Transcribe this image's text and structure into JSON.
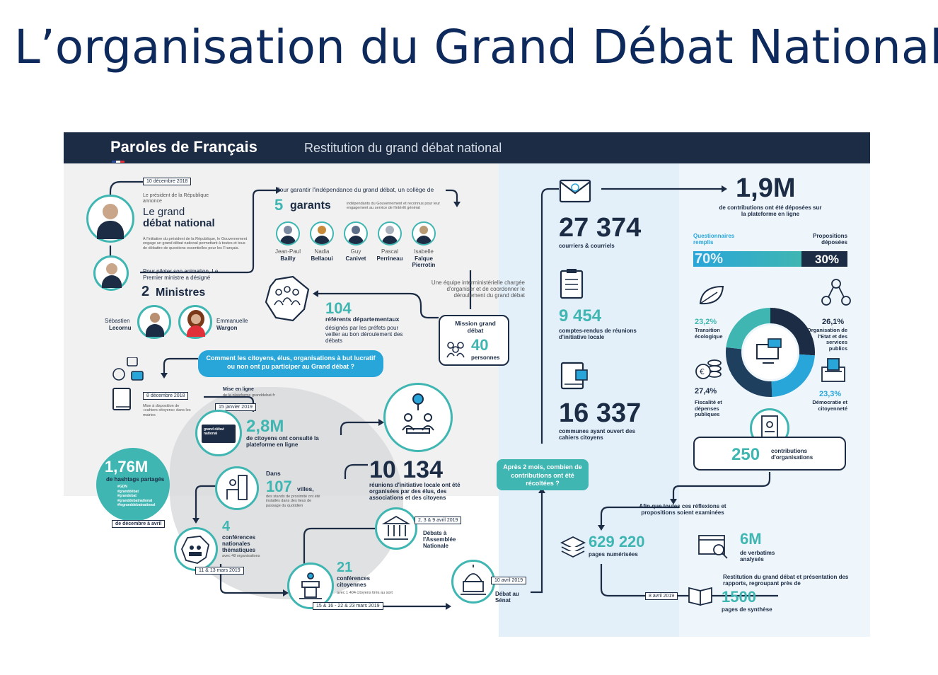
{
  "slide_title": "L’organisation du Grand Débat National",
  "banner": {
    "title": "Paroles de Français",
    "subtitle": "Restitution du grand débat national"
  },
  "left": {
    "date_dec10": "10 décembre 2018",
    "president_intro": "Le président de la République annonce",
    "grand_debat_1": "Le grand",
    "grand_debat_2": "débat national",
    "president_desc": "À l'initiative du président de la République, le Gouvernement engage un grand débat national permettant à toutes et tous de débattre de questions essentielles pour les Français.",
    "ministers_intro": "Pour piloter son animation, Le Premier ministre a désigné",
    "ministers_count": "2",
    "ministers_word": "Ministres",
    "minister_1_first": "Sébastien",
    "minister_1_last": "Lecornu",
    "minister_2_first": "Emmanuelle",
    "minister_2_last": "Wargon",
    "garants_intro": "Pour garantir l'indépendance du grand débat, un collège de",
    "garants_count": "5",
    "garants_word": "garants",
    "garants_desc": "indépendants du Gouvernement et reconnus pour leur engagement au service de l'intérêt général",
    "garants": [
      {
        "first": "Jean-Paul",
        "last": "Bailly"
      },
      {
        "first": "Nadia",
        "last": "Bellaoui"
      },
      {
        "first": "Guy",
        "last": "Canivet"
      },
      {
        "first": "Pascal",
        "last": "Perrineau"
      },
      {
        "first": "Isabelle",
        "last": "Falque Pierrotin"
      }
    ],
    "equipe_desc": "Une équipe interministérielle chargée d'organiser et de coordonner le déroulement du grand débat",
    "mission_label": "Mission grand débat",
    "mission_count": "40",
    "mission_word": "personnes",
    "referents_count": "104",
    "referents_title": "référents départementaux",
    "referents_desc": "désignés par les préfets pour veiller au bon déroulement des débats",
    "question_bubble": "Comment les citoyens, élus, organisations à but lucratif ou non ont pu participer au Grand débat ?",
    "date_dec8": "8 décembre 2018",
    "cahiers_desc": "Mise à disposition de «cahiers citoyens» dans les mairies",
    "online_title": "Mise en ligne",
    "online_desc": "de la plateforme granddebat.fr",
    "date_jan15": "15 janvier 2019",
    "platform_screen": "grand débat national",
    "visitors_count": "2,8M",
    "visitors_desc": "de citoyens ont consulté la plateforme en ligne",
    "reunions_count": "10 134",
    "reunions_desc": "réunions d'initiative locale ont été organisées par des élus, des associations et des citoyens",
    "hashtag_count": "1,76M",
    "hashtag_desc": "de hashtags partagés",
    "hashtag_list": [
      "#GDN",
      "#granddébat",
      "#grandebat",
      "#granddebatnational",
      "#legranddebatnational"
    ],
    "hashtag_period": "de décembre à avril",
    "villes_prefix": "Dans",
    "villes_count": "107",
    "villes_word": "villes,",
    "villes_desc": "des stands de proximité ont été installés dans des lieux de passage du quotidien",
    "conf_nat_count": "4",
    "conf_nat_desc": "conférences nationales thématiques",
    "conf_nat_sub": "avec 48 organisations",
    "date_mar11": "11 & 13 mars 2019",
    "conf_cit_count": "21",
    "conf_cit_desc": "conférences citoyennes",
    "conf_cit_sub": "avec 1 404 citoyens tirés au sort",
    "date_mar15": "15 & 16 - 22 & 23 mars 2019",
    "date_apr2": "2, 3 & 9 avril 2019",
    "assemblee": "Débats à l'Assemblée Nationale",
    "date_apr10": "10 avril 2019",
    "senat": "Débat au Sénat"
  },
  "right": {
    "after_bubble": "Après 2 mois, combien de contributions ont été récoltées ?",
    "courriers_count": "27 374",
    "courriers_desc": "courriers & courriels",
    "comptes_count": "9 454",
    "comptes_desc": "comptes-rendus de réunions d'initiative locale",
    "communes_count": "16 337",
    "communes_desc": "communes ayant ouvert des cahiers citoyens",
    "contrib_count": "1,9M",
    "contrib_desc": "de contributions ont été déposées sur la plateforme en ligne",
    "split_left_label": "Questionnaires remplis",
    "split_right_label": "Propositions déposées",
    "split_left_value": "70%",
    "split_right_value": "30%",
    "split_fraction": 0.7,
    "themes": [
      {
        "pct": "23,2%",
        "label": "Transition écologique",
        "value": 23.2,
        "color": "#3fb6b2"
      },
      {
        "pct": "26,1%",
        "label": "Organisation de l'Etat et des services publics",
        "value": 26.1,
        "color": "#1c2c45"
      },
      {
        "pct": "23,3%",
        "label": "Démocratie et citoyenneté",
        "value": 23.3,
        "color": "#29a6d9"
      },
      {
        "pct": "27,4%",
        "label": "Fiscalité et dépenses publiques",
        "value": 27.4,
        "color": "#1f3f5e"
      }
    ],
    "orgs_count": "250",
    "orgs_desc": "contributions d'organisations",
    "exam_desc": "Afin que toutes ces réflexions et propositions soient examinées",
    "pages_count": "629 220",
    "pages_desc": "pages numérisées",
    "verbatims_count": "6M",
    "verbatims_desc": "de verbatims analysés",
    "restitution_desc": "Restitution du grand débat et présentation des rapports, regroupant près de",
    "date_apr8": "8 avril 2019",
    "synthese_count": "1500",
    "synthese_desc": "pages de synthèse"
  }
}
